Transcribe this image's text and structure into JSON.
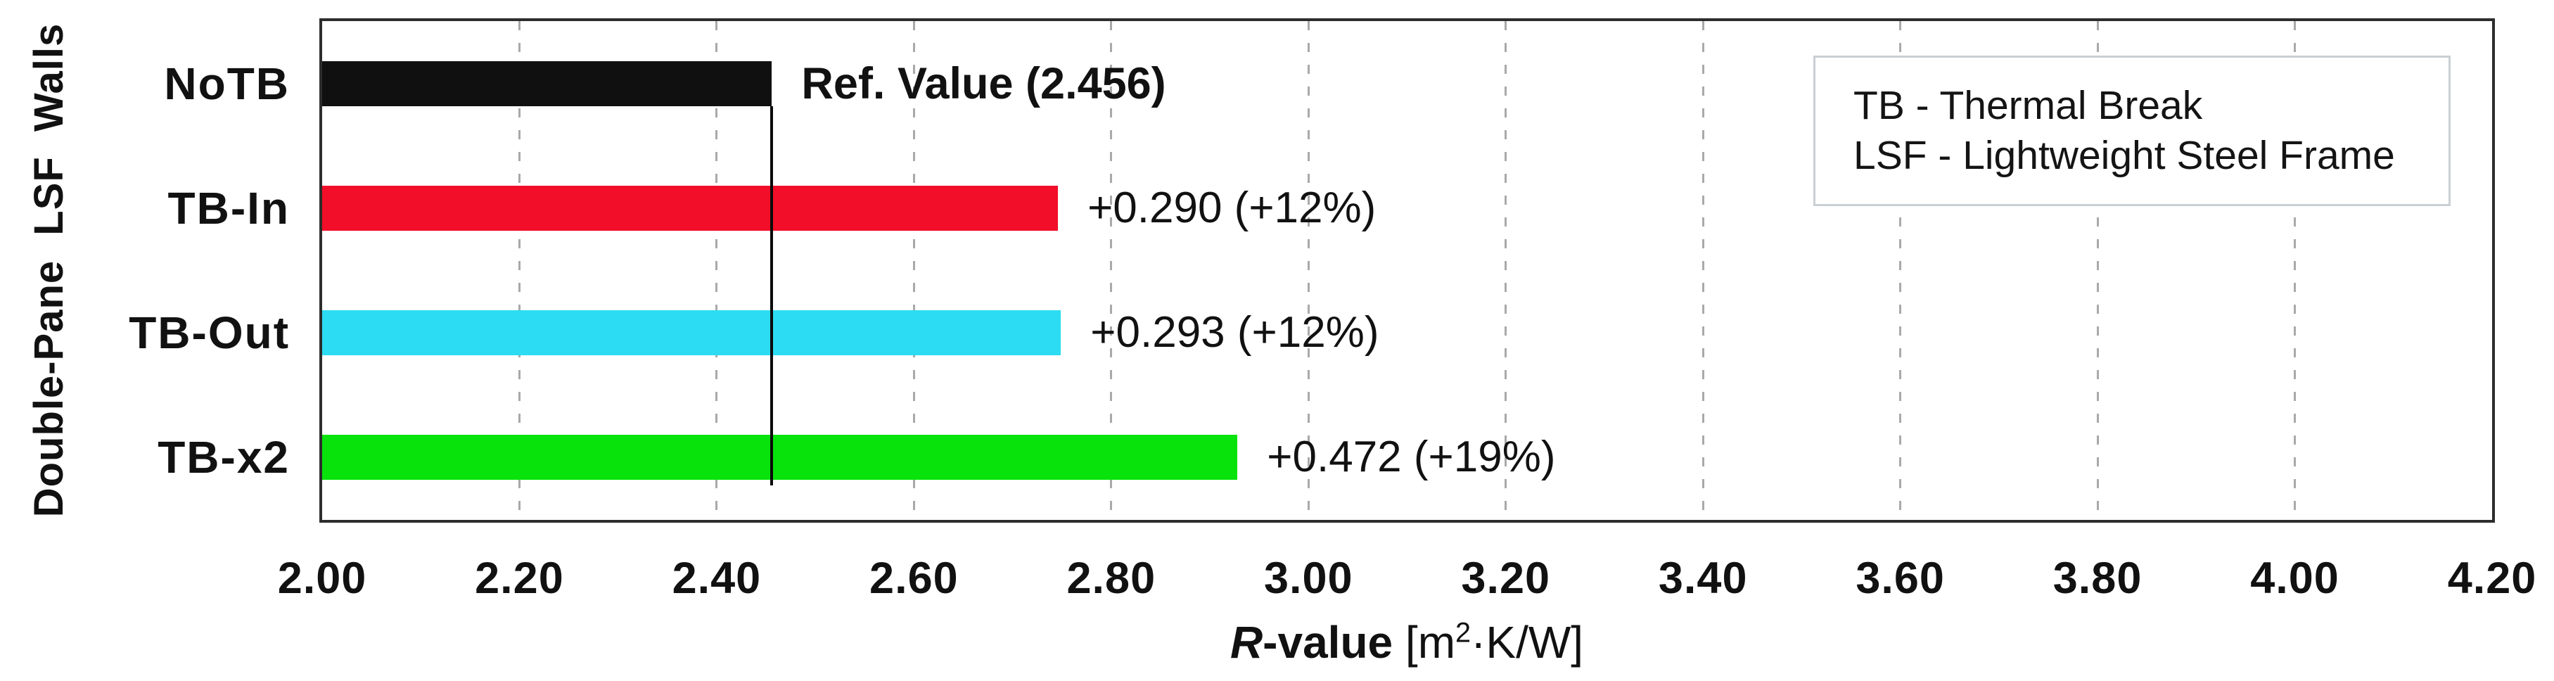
{
  "figure": {
    "background": "#ffffff",
    "x_axis_title": {
      "r_italic": "R",
      "r_rest": "-value",
      "units_pre": " [m",
      "sup": "2",
      "units_post": "·K/W]"
    },
    "legend": {
      "lines": [
        "TB - Thermal Break",
        "LSF - Lightweight Steel Frame"
      ]
    }
  },
  "chart_data": {
    "type": "bar",
    "orientation": "horizontal",
    "ylabel": "Double-Pane LSF Walls",
    "xlabel": "R-value [m2·K/W]",
    "categories": [
      "NoTB",
      "TB-In",
      "TB-Out",
      "TB-x2"
    ],
    "values": [
      2.456,
      2.746,
      2.749,
      2.928
    ],
    "bar_colors": [
      "#101010",
      "#f20e28",
      "#2cdcf2",
      "#07e30b"
    ],
    "bar_labels": [
      "Ref. Value (2.456)",
      "+0.290 (+12%)",
      "+0.293 (+12%)",
      "+0.472 (+19%)"
    ],
    "bar_label_bold": [
      true,
      false,
      false,
      false
    ],
    "deltas_vs_reference": [
      0,
      0.29,
      0.293,
      0.472
    ],
    "delta_percents_vs_reference": [
      0,
      12,
      12,
      19
    ],
    "reference_value": 2.456,
    "xlim": [
      2.0,
      4.2
    ],
    "x_tick_step": 0.2,
    "x_tick_labels": [
      "2.00",
      "2.20",
      "2.40",
      "2.60",
      "2.80",
      "3.00",
      "3.20",
      "3.40",
      "3.60",
      "3.80",
      "4.00",
      "4.20"
    ],
    "grid": "vertical-dashed",
    "legend_position": "top-right",
    "colors": {
      "gridline": "#a9a9a9",
      "plot_border": "#2d2d2d",
      "reference_line": "#0a0a0a",
      "legend_border": "#c9d0d5",
      "text": "#111111"
    }
  }
}
